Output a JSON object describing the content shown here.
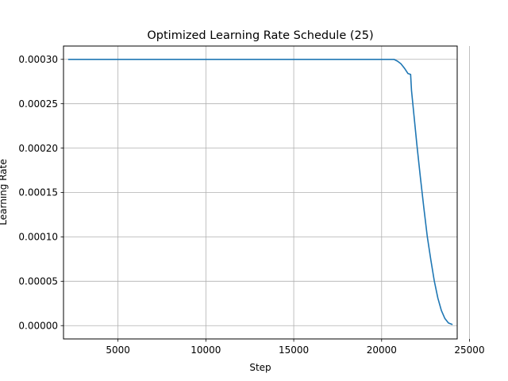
{
  "chart_data": {
    "type": "line",
    "title": "Optimized Learning Rate Schedule (25)",
    "xlabel": "Step",
    "ylabel": "Learning Rate",
    "xlim": [
      1900,
      24300
    ],
    "ylim": [
      -1.5e-05,
      0.000315
    ],
    "grid": true,
    "x_ticks": [
      5000,
      10000,
      15000,
      20000,
      25000
    ],
    "x_tick_labels": [
      "5000",
      "10000",
      "15000",
      "20000",
      "25000"
    ],
    "y_ticks": [
      0.0,
      5e-05,
      0.0001,
      0.00015,
      0.0002,
      0.00025,
      0.0003
    ],
    "y_tick_labels": [
      "0.00000",
      "0.00005",
      "0.00010",
      "0.00015",
      "0.00020",
      "0.00025",
      "0.00030"
    ],
    "series": [
      {
        "color": "#1f77b4",
        "x": [
          2200,
          5000,
          10000,
          15000,
          20000,
          20700,
          20900,
          21100,
          21300,
          21500,
          21650,
          21700,
          21800,
          21900,
          22000,
          22200,
          22400,
          22600,
          22800,
          23000,
          23200,
          23400,
          23600,
          23800,
          24000
        ],
        "y": [
          0.0003,
          0.0003,
          0.0003,
          0.0003,
          0.0003,
          0.0003,
          0.000298,
          0.000295,
          0.00029,
          0.000284,
          0.000283,
          0.000265,
          0.000245,
          0.000225,
          0.000205,
          0.000168,
          0.000133,
          0.0001,
          7.4e-05,
          5e-05,
          3.1e-05,
          1.7e-05,
          8e-06,
          3e-06,
          1.5e-06
        ]
      }
    ]
  },
  "colors": {
    "grid": "#b0b0b0",
    "axes": "#000000",
    "line": "#1f77b4"
  }
}
